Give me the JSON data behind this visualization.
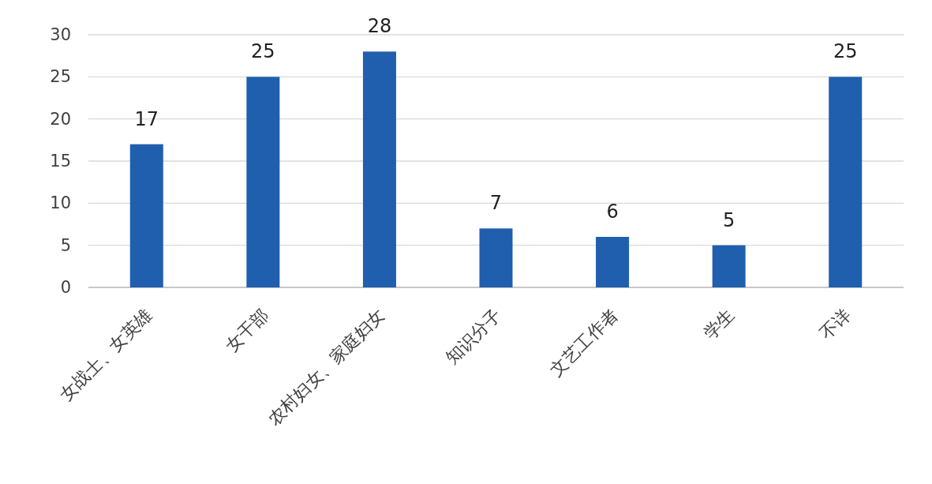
{
  "chart_data": {
    "type": "bar",
    "categories": [
      "女战士、女英雄",
      "女干部",
      "农村妇女、家庭妇女",
      "知识分子",
      "文艺工作者",
      "学生",
      "不详"
    ],
    "values": [
      17,
      25,
      28,
      7,
      6,
      5,
      25
    ],
    "color": "#205fae",
    "ylim": [
      0,
      30
    ],
    "yticks": [
      0,
      5,
      10,
      15,
      20,
      25,
      30
    ],
    "grid": "y",
    "data_labels": true
  }
}
